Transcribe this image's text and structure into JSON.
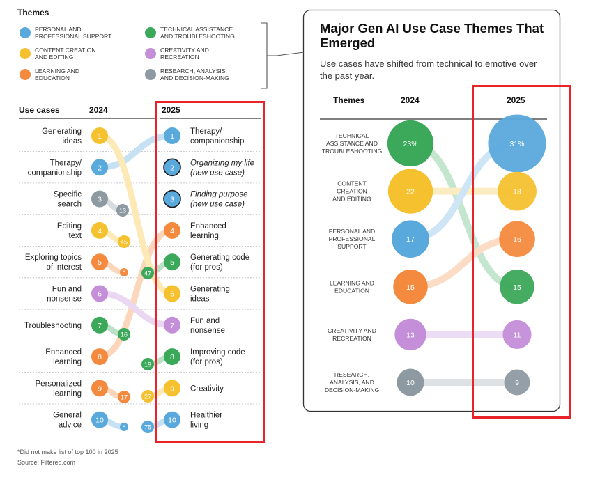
{
  "colors": {
    "personal": "#5aa9dc",
    "technical": "#3ba85a",
    "content": "#f6c12f",
    "creativity": "#c48ed9",
    "learning": "#f48a3e",
    "research": "#8e9aa2",
    "highlight": "#e8242a"
  },
  "themes_legend": {
    "title": "Themes",
    "items": [
      {
        "label1": "PERSONAL AND",
        "label2": "PROFESSIONAL SUPPORT",
        "color_key": "personal"
      },
      {
        "label1": "TECHNICAL ASSISTANCE",
        "label2": "AND TROUBLESHOOTING",
        "color_key": "technical"
      },
      {
        "label1": "CONTENT CREATION",
        "label2": "AND EDITING",
        "color_key": "content"
      },
      {
        "label1": "CREATIVITY AND",
        "label2": "RECREATION",
        "color_key": "creativity"
      },
      {
        "label1": "LEARNING AND",
        "label2": "EDUCATION",
        "color_key": "learning"
      },
      {
        "label1": "RESEARCH, ANALYSIS,",
        "label2": "AND DECISION-MAKING",
        "color_key": "research"
      }
    ]
  },
  "chart_data": [
    {
      "type": "bump",
      "header": {
        "label": "Use cases",
        "col2024": "2024",
        "col2025": "2025"
      },
      "rows_2024": [
        {
          "rank": "1",
          "label1": "Generating",
          "label2": "ideas",
          "theme": "content"
        },
        {
          "rank": "2",
          "label1": "Therapy/",
          "label2": "companionship",
          "theme": "personal"
        },
        {
          "rank": "3",
          "label1": "Specific",
          "label2": "search",
          "theme": "research"
        },
        {
          "rank": "4",
          "label1": "Editing",
          "label2": "text",
          "theme": "content"
        },
        {
          "rank": "5",
          "label1": "Exploring topics",
          "label2": "of interest",
          "theme": "learning"
        },
        {
          "rank": "6",
          "label1": "Fun and",
          "label2": "nonsense",
          "theme": "creativity"
        },
        {
          "rank": "7",
          "label1": "Troubleshooting",
          "label2": "",
          "theme": "technical"
        },
        {
          "rank": "8",
          "label1": "Enhanced",
          "label2": "learning",
          "theme": "learning"
        },
        {
          "rank": "9",
          "label1": "Personalized",
          "label2": "learning",
          "theme": "learning"
        },
        {
          "rank": "10",
          "label1": "General",
          "label2": "advice",
          "theme": "personal"
        }
      ],
      "rows_2025": [
        {
          "rank": "1",
          "label1": "Therapy/",
          "label2": "companionship",
          "theme": "personal",
          "italic": false,
          "from": 2
        },
        {
          "rank": "2",
          "label1": "Organizing my life",
          "label2": "(new use case)",
          "theme": "personal",
          "italic": true,
          "from": null
        },
        {
          "rank": "3",
          "label1": "Finding purpose",
          "label2": "(new use case)",
          "theme": "personal",
          "italic": true,
          "from": null
        },
        {
          "rank": "4",
          "label1": "Enhanced",
          "label2": "learning",
          "theme": "learning",
          "italic": false,
          "from": 8
        },
        {
          "rank": "5",
          "label1": "Generating code",
          "label2": "(for pros)",
          "theme": "technical",
          "italic": false,
          "from_label": "47"
        },
        {
          "rank": "6",
          "label1": "Generating",
          "label2": "ideas",
          "theme": "content",
          "italic": false,
          "from": 1
        },
        {
          "rank": "7",
          "label1": "Fun and",
          "label2": "nonsense",
          "theme": "creativity",
          "italic": false,
          "from": 6
        },
        {
          "rank": "8",
          "label1": "Improving code",
          "label2": "(for pros)",
          "theme": "technical",
          "italic": false,
          "from_label": "19"
        },
        {
          "rank": "9",
          "label1": "Creativity",
          "label2": "",
          "theme": "content",
          "italic": false,
          "from_label": "27"
        },
        {
          "rank": "10",
          "label1": "Healthier",
          "label2": "living",
          "theme": "personal",
          "italic": false,
          "from_label": "75"
        }
      ],
      "drop_markers": [
        {
          "from": 3,
          "value": "13",
          "theme": "research"
        },
        {
          "from": 4,
          "value": "45",
          "theme": "content"
        },
        {
          "from": 5,
          "value": "*",
          "theme": "learning"
        },
        {
          "from": 7,
          "value": "16",
          "theme": "technical"
        },
        {
          "from": 9,
          "value": "17",
          "theme": "learning"
        },
        {
          "from": 10,
          "value": "*",
          "theme": "personal"
        }
      ]
    },
    {
      "type": "bump-bubble",
      "title": "Major Gen AI Use Case Themes That Emerged",
      "subtitle": "Use cases have shifted from technical to emotive over the past year.",
      "header": {
        "label": "Themes",
        "col2024": "2024",
        "col2025": "2025"
      },
      "rows": [
        {
          "label": [
            "TECHNICAL",
            "ASSISTANCE AND",
            "TROUBLESHOOTING"
          ],
          "value_2024": "23%",
          "num_2024": 23,
          "theme": "technical"
        },
        {
          "label": [
            "CONTENT",
            "CREATION",
            "AND EDITING"
          ],
          "value_2024": "22",
          "num_2024": 22,
          "theme": "content"
        },
        {
          "label": [
            "PERSONAL AND",
            "PROFESSIONAL",
            "SUPPORT"
          ],
          "value_2024": "17",
          "num_2024": 17,
          "theme": "personal"
        },
        {
          "label": [
            "LEARNING AND",
            "EDUCATION"
          ],
          "value_2024": "15",
          "num_2024": 15,
          "theme": "learning"
        },
        {
          "label": [
            "CREATIVITY AND",
            "RECREATION"
          ],
          "value_2024": "13",
          "num_2024": 13,
          "theme": "creativity"
        },
        {
          "label": [
            "RESEARCH,",
            "ANALYSIS, AND",
            "DECISION-MAKING"
          ],
          "value_2024": "10",
          "num_2024": 10,
          "theme": "research"
        }
      ],
      "ranks_2025": [
        {
          "value": "31%",
          "num": 31,
          "theme": "personal"
        },
        {
          "value": "18",
          "num": 18,
          "theme": "content"
        },
        {
          "value": "16",
          "num": 16,
          "theme": "learning"
        },
        {
          "value": "15",
          "num": 15,
          "theme": "technical"
        },
        {
          "value": "11",
          "num": 11,
          "theme": "creativity"
        },
        {
          "value": "9",
          "num": 9,
          "theme": "research"
        }
      ]
    }
  ],
  "footnote": "*Did not make list of top 100 in 2025",
  "source": "Source: Filtered.com"
}
